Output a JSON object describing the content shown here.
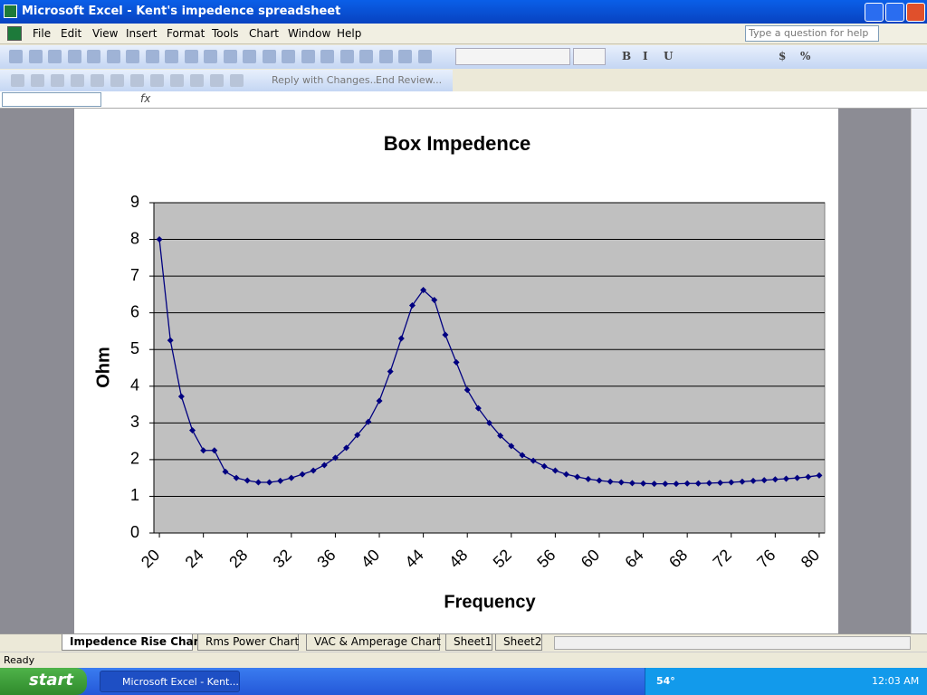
{
  "window": {
    "title": "Microsoft Excel - Kent's impedence spreadsheet"
  },
  "menu": [
    "File",
    "Edit",
    "View",
    "Insert",
    "Format",
    "Tools",
    "Chart",
    "Window",
    "Help"
  ],
  "help_box": "Type a question for help",
  "format_buttons": [
    "B",
    "I",
    "U",
    "$",
    "%"
  ],
  "review_toolbar": [
    "Reply with Changes...",
    "End Review..."
  ],
  "formula_bar": {
    "fx": "fx"
  },
  "sheet_tabs": [
    "Impedence Rise Chart",
    "Rms Power Chart",
    "VAC & Amperage Chart",
    "Sheet1",
    "Sheet2"
  ],
  "status": "Ready",
  "taskbar": {
    "start": "start",
    "task": "Microsoft Excel - Kent...",
    "weather": "54°",
    "clock": "12:03 AM"
  },
  "chart_data": {
    "type": "line",
    "title": "Box Impedence",
    "x_label": "Frequency",
    "y_label": "Ohm",
    "x": [
      20,
      21,
      22,
      23,
      24,
      25,
      26,
      27,
      28,
      29,
      30,
      31,
      32,
      33,
      34,
      35,
      36,
      37,
      38,
      39,
      40,
      41,
      42,
      43,
      44,
      45,
      46,
      47,
      48,
      49,
      50,
      51,
      52,
      53,
      54,
      55,
      56,
      57,
      58,
      59,
      60,
      61,
      62,
      63,
      64,
      65,
      66,
      67,
      68,
      69,
      70,
      71,
      72,
      73,
      74,
      75,
      76,
      77,
      78,
      79,
      80
    ],
    "values": [
      8.0,
      5.25,
      3.72,
      2.8,
      2.25,
      2.25,
      1.67,
      1.5,
      1.43,
      1.38,
      1.38,
      1.42,
      1.5,
      1.6,
      1.7,
      1.85,
      2.05,
      2.32,
      2.67,
      3.03,
      3.6,
      4.4,
      5.3,
      6.2,
      6.62,
      6.35,
      5.4,
      4.65,
      3.9,
      3.4,
      3.0,
      2.65,
      2.37,
      2.12,
      1.97,
      1.82,
      1.7,
      1.6,
      1.53,
      1.47,
      1.43,
      1.4,
      1.38,
      1.36,
      1.35,
      1.34,
      1.34,
      1.34,
      1.35,
      1.35,
      1.36,
      1.37,
      1.38,
      1.4,
      1.42,
      1.44,
      1.46,
      1.48,
      1.5,
      1.53,
      1.57
    ],
    "color": "#000080",
    "xlim": [
      19.5,
      80.5
    ],
    "xticks": [
      20,
      24,
      28,
      32,
      36,
      40,
      44,
      48,
      52,
      56,
      60,
      64,
      68,
      72,
      76,
      80
    ],
    "ylim": [
      0,
      9
    ],
    "yticks": [
      0,
      1,
      2,
      3,
      4,
      5,
      6,
      7,
      8,
      9
    ],
    "grid": true,
    "plot_background": "#c0c0c0"
  }
}
